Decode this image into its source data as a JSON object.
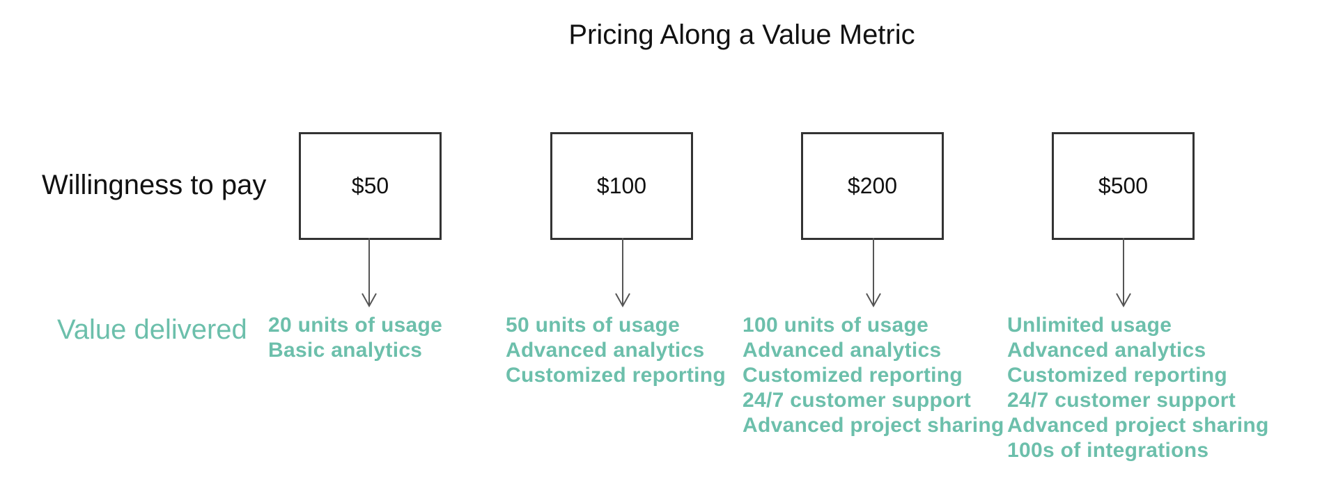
{
  "title": "Pricing Along a Value Metric",
  "rows": {
    "top_label": "Willingness to pay",
    "bottom_label": "Value delivered"
  },
  "tiers": [
    {
      "price": "$50",
      "features": [
        "20 units of usage",
        "Basic analytics"
      ]
    },
    {
      "price": "$100",
      "features": [
        "50 units of usage",
        "Advanced analytics",
        "Customized reporting"
      ]
    },
    {
      "price": "$200",
      "features": [
        "100 units of usage",
        "Advanced analytics",
        "Customized reporting",
        "24/7 customer support",
        "Advanced project sharing"
      ]
    },
    {
      "price": "$500",
      "features": [
        "Unlimited usage",
        "Advanced analytics",
        "Customized reporting",
        "24/7 customer support",
        "Advanced project sharing",
        "100s of integrations"
      ]
    }
  ],
  "colors": {
    "accent": "#6cbfab",
    "text": "#111111",
    "box_border": "#333333",
    "arrow": "#555555"
  }
}
